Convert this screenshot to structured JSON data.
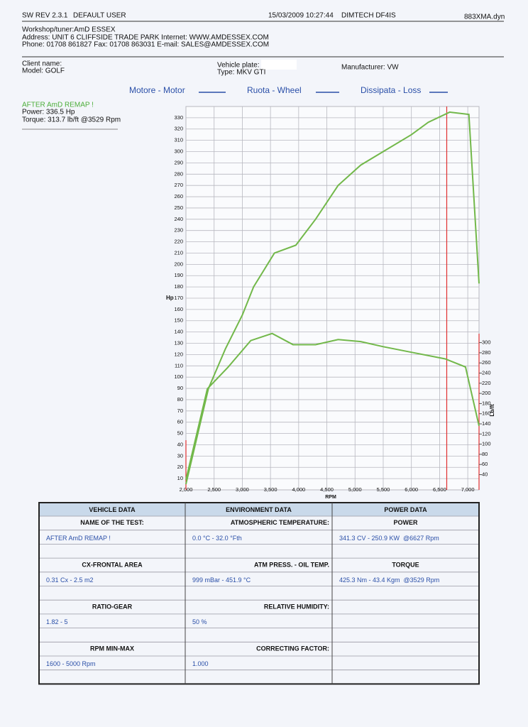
{
  "header": {
    "software": "SW REV 2.3.1",
    "user": "DEFAULT USER",
    "datetime": "15/03/2009 10:27:44",
    "device": "DIMTECH DF4IS",
    "file": "883XMA.dyn"
  },
  "workshop": [
    "Workshop/tuner:AmD ESSEX",
    "Address: UNIT 6 CLIFFSIDE TRADE PARK Internet: WWW.AMDESSEX.COM",
    "Phone: 01708 861827 Fax: 01708 863031 E-mail: SALES@AMDESSEX.COM"
  ],
  "client": {
    "client_name": "Client name:",
    "model": "Model: GOLF",
    "plate": "Vehicle plate:",
    "type": "Type: MKV GTI",
    "manufacturer": "Manufacturer: VW"
  },
  "summary": {
    "title": "AFTER AmD REMAP !",
    "power": "Power: 336.5 Hp",
    "torque": "Torque: 313.7 lb/ft @3529 Rpm"
  },
  "chart_data": {
    "type": "line",
    "legend": [
      "Motore - Motor",
      "Ruota - Wheel",
      "Dissipata - Loss"
    ],
    "legend_color": "#2a4fa8",
    "ylabel": "Hp",
    "xlabel": "RPM",
    "y2label": "Lb/ft",
    "xlim": [
      2000,
      7200
    ],
    "ylim": [
      0,
      340
    ],
    "y2lim": [
      10,
      765
    ],
    "xticks": [
      {
        "value": 2000,
        "label": "2,000"
      },
      {
        "value": 2500,
        "label": "2,500"
      },
      {
        "value": 3000,
        "label": "3,000"
      },
      {
        "value": 3500,
        "label": "3,500"
      },
      {
        "value": 4000,
        "label": "4,000"
      },
      {
        "value": 4500,
        "label": "4,500"
      },
      {
        "value": 5000,
        "label": "5,000"
      },
      {
        "value": 5500,
        "label": "5,500"
      },
      {
        "value": 6000,
        "label": "6,000"
      },
      {
        "value": 6500,
        "label": "6,500"
      },
      {
        "value": 7000,
        "label": "7,000"
      }
    ],
    "yticks": [
      10,
      20,
      30,
      40,
      50,
      60,
      70,
      80,
      90,
      100,
      110,
      120,
      130,
      140,
      150,
      160,
      170,
      180,
      190,
      200,
      210,
      220,
      230,
      240,
      250,
      260,
      270,
      280,
      290,
      300,
      310,
      320,
      330
    ],
    "y2ticks": [
      40,
      60,
      80,
      100,
      120,
      140,
      160,
      180,
      200,
      220,
      240,
      260,
      280,
      300
    ],
    "grid": true,
    "cursor_rpm": 6627,
    "cursor_color": "#e03030",
    "series": [
      {
        "color": "#72b84a",
        "x": [
          2000,
          2400,
          2700,
          3000,
          3200,
          3570,
          3950,
          4300,
          4700,
          5100,
          5500,
          6000,
          6300,
          6680,
          7020,
          7200
        ],
        "values": [
          5,
          90,
          125,
          155,
          180,
          210,
          217,
          240,
          270,
          288,
          300,
          315,
          326,
          335,
          333,
          183
        ]
      },
      {
        "color": "#72b84a",
        "axis": "y2",
        "x": [
          2000,
          2380,
          2750,
          3150,
          3530,
          3900,
          4300,
          4700,
          5100,
          5500,
          6000,
          6600,
          6960,
          7200
        ],
        "values": [
          30,
          209,
          252,
          304,
          318,
          296,
          296,
          306,
          302,
          292,
          281,
          268,
          252,
          136
        ]
      }
    ]
  },
  "table": {
    "headers": [
      "VEHICLE DATA",
      "ENVIRONMENT DATA",
      "POWER DATA"
    ],
    "rows": [
      [
        "NAME OF THE TEST:",
        "ATMOSPHERIC TEMPERATURE:",
        "POWER"
      ],
      [
        "AFTER AmD REMAP !",
        "0.0 °C - 32.0 °Fth",
        "341.3 CV - 250.9 KW  @6627 Rpm"
      ],
      [
        "CX-FRONTAL AREA",
        "ATM PRESS. - OIL TEMP.",
        "TORQUE"
      ],
      [
        "0.31 Cx - 2.5 m2",
        "999 mBar - 451.9 °C",
        "425.3 Nm - 43.4 Kgm  @3529 Rpm"
      ],
      [
        "RATIO-GEAR",
        "RELATIVE HUMIDITY:",
        null
      ],
      [
        "1.82 - 5",
        "50 %",
        null
      ],
      [
        "RPM MIN-MAX",
        "CORRECTING FACTOR:",
        null
      ],
      [
        "1600 - 5000 Rpm",
        "1.000",
        null
      ]
    ]
  }
}
